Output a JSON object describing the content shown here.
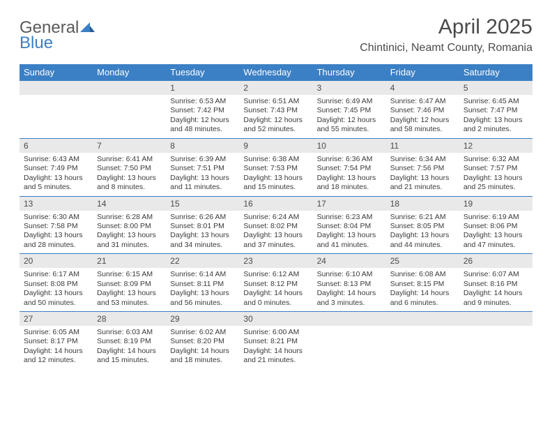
{
  "brand": {
    "line1": "General",
    "line2": "Blue"
  },
  "title": "April 2025",
  "location": "Chintinici, Neamt County, Romania",
  "colors": {
    "header_bg": "#3b7fc4",
    "header_fg": "#ffffff",
    "daynum_bg": "#e9e9e9",
    "text": "#3a3a3a",
    "rule": "#3b7fc4"
  },
  "day_headers": [
    "Sunday",
    "Monday",
    "Tuesday",
    "Wednesday",
    "Thursday",
    "Friday",
    "Saturday"
  ],
  "weeks": [
    [
      {
        "n": "",
        "sr": "",
        "ss": "",
        "dl": ""
      },
      {
        "n": "",
        "sr": "",
        "ss": "",
        "dl": ""
      },
      {
        "n": "1",
        "sr": "Sunrise: 6:53 AM",
        "ss": "Sunset: 7:42 PM",
        "dl": "Daylight: 12 hours and 48 minutes."
      },
      {
        "n": "2",
        "sr": "Sunrise: 6:51 AM",
        "ss": "Sunset: 7:43 PM",
        "dl": "Daylight: 12 hours and 52 minutes."
      },
      {
        "n": "3",
        "sr": "Sunrise: 6:49 AM",
        "ss": "Sunset: 7:45 PM",
        "dl": "Daylight: 12 hours and 55 minutes."
      },
      {
        "n": "4",
        "sr": "Sunrise: 6:47 AM",
        "ss": "Sunset: 7:46 PM",
        "dl": "Daylight: 12 hours and 58 minutes."
      },
      {
        "n": "5",
        "sr": "Sunrise: 6:45 AM",
        "ss": "Sunset: 7:47 PM",
        "dl": "Daylight: 13 hours and 2 minutes."
      }
    ],
    [
      {
        "n": "6",
        "sr": "Sunrise: 6:43 AM",
        "ss": "Sunset: 7:49 PM",
        "dl": "Daylight: 13 hours and 5 minutes."
      },
      {
        "n": "7",
        "sr": "Sunrise: 6:41 AM",
        "ss": "Sunset: 7:50 PM",
        "dl": "Daylight: 13 hours and 8 minutes."
      },
      {
        "n": "8",
        "sr": "Sunrise: 6:39 AM",
        "ss": "Sunset: 7:51 PM",
        "dl": "Daylight: 13 hours and 11 minutes."
      },
      {
        "n": "9",
        "sr": "Sunrise: 6:38 AM",
        "ss": "Sunset: 7:53 PM",
        "dl": "Daylight: 13 hours and 15 minutes."
      },
      {
        "n": "10",
        "sr": "Sunrise: 6:36 AM",
        "ss": "Sunset: 7:54 PM",
        "dl": "Daylight: 13 hours and 18 minutes."
      },
      {
        "n": "11",
        "sr": "Sunrise: 6:34 AM",
        "ss": "Sunset: 7:56 PM",
        "dl": "Daylight: 13 hours and 21 minutes."
      },
      {
        "n": "12",
        "sr": "Sunrise: 6:32 AM",
        "ss": "Sunset: 7:57 PM",
        "dl": "Daylight: 13 hours and 25 minutes."
      }
    ],
    [
      {
        "n": "13",
        "sr": "Sunrise: 6:30 AM",
        "ss": "Sunset: 7:58 PM",
        "dl": "Daylight: 13 hours and 28 minutes."
      },
      {
        "n": "14",
        "sr": "Sunrise: 6:28 AM",
        "ss": "Sunset: 8:00 PM",
        "dl": "Daylight: 13 hours and 31 minutes."
      },
      {
        "n": "15",
        "sr": "Sunrise: 6:26 AM",
        "ss": "Sunset: 8:01 PM",
        "dl": "Daylight: 13 hours and 34 minutes."
      },
      {
        "n": "16",
        "sr": "Sunrise: 6:24 AM",
        "ss": "Sunset: 8:02 PM",
        "dl": "Daylight: 13 hours and 37 minutes."
      },
      {
        "n": "17",
        "sr": "Sunrise: 6:23 AM",
        "ss": "Sunset: 8:04 PM",
        "dl": "Daylight: 13 hours and 41 minutes."
      },
      {
        "n": "18",
        "sr": "Sunrise: 6:21 AM",
        "ss": "Sunset: 8:05 PM",
        "dl": "Daylight: 13 hours and 44 minutes."
      },
      {
        "n": "19",
        "sr": "Sunrise: 6:19 AM",
        "ss": "Sunset: 8:06 PM",
        "dl": "Daylight: 13 hours and 47 minutes."
      }
    ],
    [
      {
        "n": "20",
        "sr": "Sunrise: 6:17 AM",
        "ss": "Sunset: 8:08 PM",
        "dl": "Daylight: 13 hours and 50 minutes."
      },
      {
        "n": "21",
        "sr": "Sunrise: 6:15 AM",
        "ss": "Sunset: 8:09 PM",
        "dl": "Daylight: 13 hours and 53 minutes."
      },
      {
        "n": "22",
        "sr": "Sunrise: 6:14 AM",
        "ss": "Sunset: 8:11 PM",
        "dl": "Daylight: 13 hours and 56 minutes."
      },
      {
        "n": "23",
        "sr": "Sunrise: 6:12 AM",
        "ss": "Sunset: 8:12 PM",
        "dl": "Daylight: 14 hours and 0 minutes."
      },
      {
        "n": "24",
        "sr": "Sunrise: 6:10 AM",
        "ss": "Sunset: 8:13 PM",
        "dl": "Daylight: 14 hours and 3 minutes."
      },
      {
        "n": "25",
        "sr": "Sunrise: 6:08 AM",
        "ss": "Sunset: 8:15 PM",
        "dl": "Daylight: 14 hours and 6 minutes."
      },
      {
        "n": "26",
        "sr": "Sunrise: 6:07 AM",
        "ss": "Sunset: 8:16 PM",
        "dl": "Daylight: 14 hours and 9 minutes."
      }
    ],
    [
      {
        "n": "27",
        "sr": "Sunrise: 6:05 AM",
        "ss": "Sunset: 8:17 PM",
        "dl": "Daylight: 14 hours and 12 minutes."
      },
      {
        "n": "28",
        "sr": "Sunrise: 6:03 AM",
        "ss": "Sunset: 8:19 PM",
        "dl": "Daylight: 14 hours and 15 minutes."
      },
      {
        "n": "29",
        "sr": "Sunrise: 6:02 AM",
        "ss": "Sunset: 8:20 PM",
        "dl": "Daylight: 14 hours and 18 minutes."
      },
      {
        "n": "30",
        "sr": "Sunrise: 6:00 AM",
        "ss": "Sunset: 8:21 PM",
        "dl": "Daylight: 14 hours and 21 minutes."
      },
      {
        "n": "",
        "sr": "",
        "ss": "",
        "dl": ""
      },
      {
        "n": "",
        "sr": "",
        "ss": "",
        "dl": ""
      },
      {
        "n": "",
        "sr": "",
        "ss": "",
        "dl": ""
      }
    ]
  ]
}
